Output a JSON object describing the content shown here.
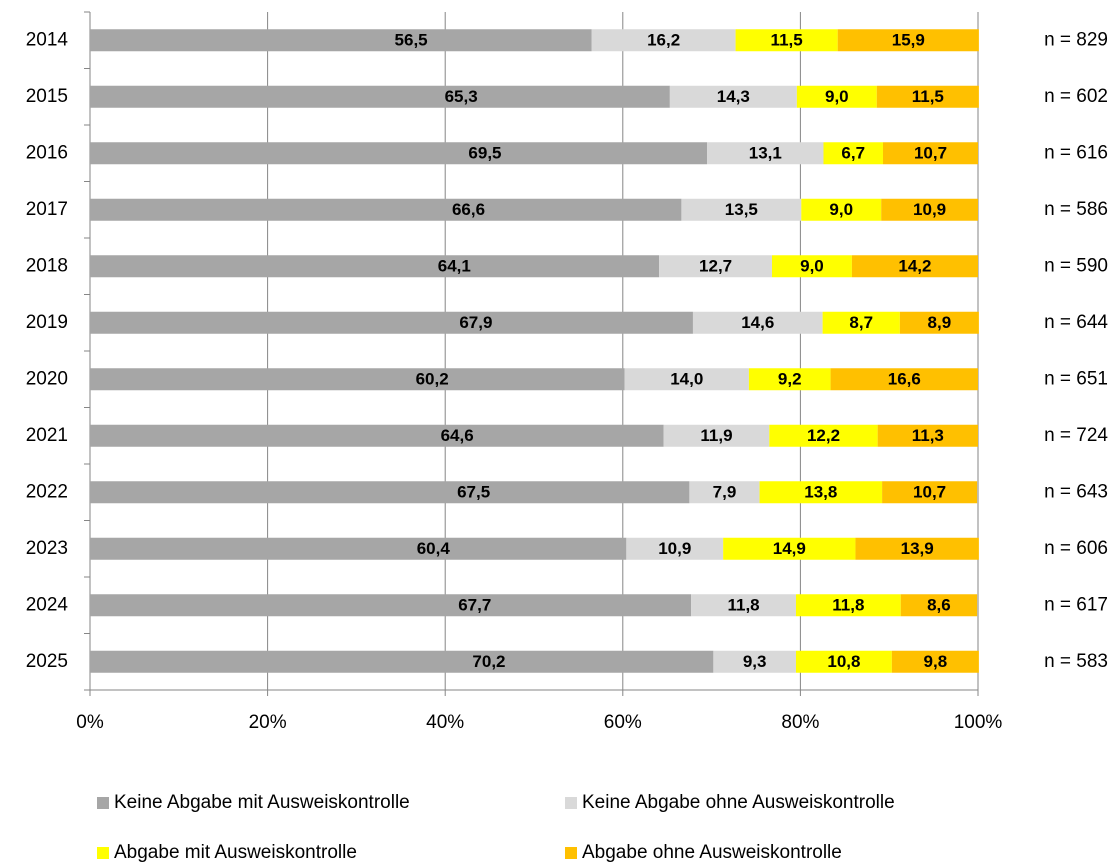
{
  "chart_data": {
    "type": "bar",
    "orientation": "horizontal",
    "stacked": true,
    "categories": [
      "2014",
      "2015",
      "2016",
      "2017",
      "2018",
      "2019",
      "2020",
      "2021",
      "2022",
      "2023",
      "2024",
      "2025"
    ],
    "series": [
      {
        "name": "Keine Abgabe mit Ausweiskontrolle",
        "color": "#a6a6a6",
        "values": [
          56.5,
          65.3,
          69.5,
          66.6,
          64.1,
          67.9,
          60.2,
          64.6,
          67.5,
          60.4,
          67.7,
          70.2
        ],
        "value_labels": [
          "56,5",
          "65,3",
          "69,5",
          "66,6",
          "64,1",
          "67,9",
          "60,2",
          "64,6",
          "67,5",
          "60,4",
          "67,7",
          "70,2"
        ]
      },
      {
        "name": "Keine Abgabe ohne Ausweiskontrolle",
        "color": "#d9d9d9",
        "values": [
          16.2,
          14.3,
          13.1,
          13.5,
          12.7,
          14.6,
          14.0,
          11.9,
          7.9,
          10.9,
          11.8,
          9.3
        ],
        "value_labels": [
          "16,2",
          "14,3",
          "13,1",
          "13,5",
          "12,7",
          "14,6",
          "14,0",
          "11,9",
          "7,9",
          "10,9",
          "11,8",
          "9,3"
        ]
      },
      {
        "name": "Abgabe mit Ausweiskontrolle",
        "color": "#ffff00",
        "values": [
          11.5,
          9.0,
          6.7,
          9.0,
          9.0,
          8.7,
          9.2,
          12.2,
          13.8,
          14.9,
          11.8,
          10.8
        ],
        "value_labels": [
          "11,5",
          "9,0",
          "6,7",
          "9,0",
          "9,0",
          "8,7",
          "9,2",
          "12,2",
          "13,8",
          "14,9",
          "11,8",
          "10,8"
        ]
      },
      {
        "name": "Abgabe ohne Ausweiskontrolle",
        "color": "#ffc000",
        "values": [
          15.9,
          11.5,
          10.7,
          10.9,
          14.2,
          8.9,
          16.6,
          11.3,
          10.7,
          13.9,
          8.6,
          9.8
        ],
        "value_labels": [
          "15,9",
          "11,5",
          "10,7",
          "10,9",
          "14,2",
          "8,9",
          "16,6",
          "11,3",
          "10,7",
          "13,9",
          "8,6",
          "9,8"
        ]
      }
    ],
    "n_labels": [
      "n = 829",
      "n = 602",
      "n = 616",
      "n = 586",
      "n = 590",
      "n = 644",
      "n = 651",
      "n = 724",
      "n = 643",
      "n = 606",
      "n = 617",
      "n = 583"
    ],
    "xlim": [
      0,
      100
    ],
    "xticks": [
      {
        "value": 0,
        "label": "0%"
      },
      {
        "value": 20,
        "label": "20%"
      },
      {
        "value": 40,
        "label": "40%"
      },
      {
        "value": 60,
        "label": "60%"
      },
      {
        "value": 80,
        "label": "80%"
      },
      {
        "value": 100,
        "label": "100%"
      }
    ],
    "grid": true,
    "legend": "bottom"
  }
}
